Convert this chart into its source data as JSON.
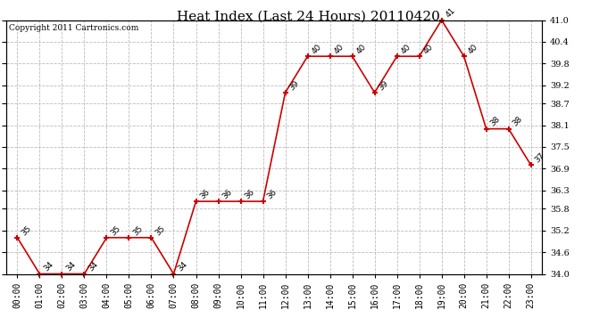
{
  "title": "Heat Index (Last 24 Hours) 20110420",
  "copyright": "Copyright 2011 Cartronics.com",
  "hours": [
    "00:00",
    "01:00",
    "02:00",
    "03:00",
    "04:00",
    "05:00",
    "06:00",
    "07:00",
    "08:00",
    "09:00",
    "10:00",
    "11:00",
    "12:00",
    "13:00",
    "14:00",
    "15:00",
    "16:00",
    "17:00",
    "18:00",
    "19:00",
    "20:00",
    "21:00",
    "22:00",
    "23:00"
  ],
  "values": [
    35,
    34,
    34,
    34,
    35,
    35,
    35,
    34,
    36,
    36,
    36,
    36,
    39,
    40,
    40,
    40,
    39,
    40,
    40,
    41,
    40,
    38,
    38,
    37
  ],
  "line_color": "#cc0000",
  "marker_color": "#cc0000",
  "bg_color": "#ffffff",
  "plot_bg_color": "#ffffff",
  "grid_color": "#bbbbbb",
  "title_fontsize": 11,
  "label_fontsize": 7,
  "annotation_fontsize": 6.5,
  "copyright_fontsize": 6.5,
  "ylim_min": 34.0,
  "ylim_max": 41.0,
  "yticks": [
    34.0,
    34.6,
    35.2,
    35.8,
    36.3,
    36.9,
    37.5,
    38.1,
    38.7,
    39.2,
    39.8,
    40.4,
    41.0
  ]
}
